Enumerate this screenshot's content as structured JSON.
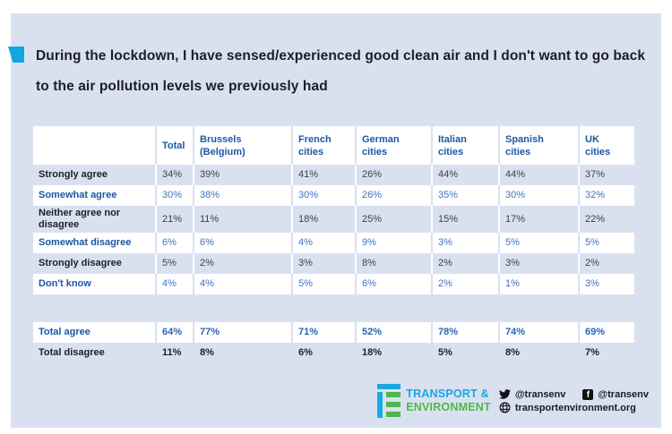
{
  "page": {
    "title_lines": [
      "During the lockdown, I have sensed/experienced good clean air and I don't want to go back",
      "to the air pollution levels we previously had"
    ]
  },
  "colors": {
    "page_bg": "#d9e1f1",
    "accent_cyan": "#15a5e0",
    "header_blue": "#1b57a5",
    "value_blue": "#3d73bb",
    "text_dark": "#202124",
    "logo_blue": "#1ba7e0",
    "logo_green": "#4db848"
  },
  "table": {
    "columns": [
      {
        "line1": "Total",
        "line2": ""
      },
      {
        "line1": "Brussels",
        "line2": "(Belgium)"
      },
      {
        "line1": "French",
        "line2": "cities"
      },
      {
        "line1": "German",
        "line2": "cities"
      },
      {
        "line1": "Italian",
        "line2": "cities"
      },
      {
        "line1": "Spanish",
        "line2": "cities"
      },
      {
        "line1": "UK",
        "line2": "cities"
      }
    ],
    "rows": [
      {
        "label": "Strongly agree",
        "style": "dark",
        "values": [
          "34%",
          "39%",
          "41%",
          "26%",
          "44%",
          "44%",
          "37%"
        ]
      },
      {
        "label": "Somewhat agree",
        "style": "blue",
        "values": [
          "30%",
          "38%",
          "30%",
          "26%",
          "35%",
          "30%",
          "32%"
        ]
      },
      {
        "label": "Neither agree nor disagree",
        "style": "dark",
        "values": [
          "21%",
          "11%",
          "18%",
          "25%",
          "15%",
          "17%",
          "22%"
        ]
      },
      {
        "label": "Somewhat disagree",
        "style": "blue",
        "values": [
          "6%",
          "6%",
          "4%",
          "9%",
          "3%",
          "5%",
          "5%"
        ]
      },
      {
        "label": "Strongly disagree",
        "style": "dark",
        "values": [
          "5%",
          "2%",
          "3%",
          "8%",
          "2%",
          "3%",
          "2%"
        ]
      },
      {
        "label": "Don't know",
        "style": "blue",
        "values": [
          "4%",
          "4%",
          "5%",
          "6%",
          "2%",
          "1%",
          "3%"
        ]
      },
      {
        "label": "",
        "style": "spacer",
        "values": []
      },
      {
        "label": "Total agree",
        "style": "blue-total",
        "values": [
          "64%",
          "77%",
          "71%",
          "52%",
          "78%",
          "74%",
          "69%"
        ]
      },
      {
        "label": "Total disagree",
        "style": "dark-total",
        "values": [
          "11%",
          "8%",
          "6%",
          "18%",
          "5%",
          "8%",
          "7%"
        ]
      }
    ]
  },
  "footer": {
    "logo": {
      "line1": "TRANSPORT &",
      "line2": "ENVIRONMENT"
    },
    "social": {
      "twitter_handle": "@transenv",
      "facebook_handle": "@transenv",
      "website": "transportenvironment.org"
    },
    "icons": {
      "facebook_letter": "f"
    }
  },
  "chart_data": {
    "type": "table",
    "title": "During the lockdown, I have sensed/experienced good clean air and I don't want to go back to the air pollution levels we previously had",
    "columns": [
      "Total",
      "Brussels (Belgium)",
      "French cities",
      "German cities",
      "Italian cities",
      "Spanish cities",
      "UK cities"
    ],
    "row_labels": [
      "Strongly agree",
      "Somewhat agree",
      "Neither agree nor disagree",
      "Somewhat disagree",
      "Strongly disagree",
      "Don't know",
      "Total agree",
      "Total disagree"
    ],
    "values_pct": [
      [
        34,
        39,
        41,
        26,
        44,
        44,
        37
      ],
      [
        30,
        38,
        30,
        26,
        35,
        30,
        32
      ],
      [
        21,
        11,
        18,
        25,
        15,
        17,
        22
      ],
      [
        6,
        6,
        4,
        9,
        3,
        5,
        5
      ],
      [
        5,
        2,
        3,
        8,
        2,
        3,
        2
      ],
      [
        4,
        4,
        5,
        6,
        2,
        1,
        3
      ],
      [
        64,
        77,
        71,
        52,
        78,
        74,
        69
      ],
      [
        11,
        8,
        6,
        18,
        5,
        8,
        7
      ]
    ],
    "units": "%"
  }
}
